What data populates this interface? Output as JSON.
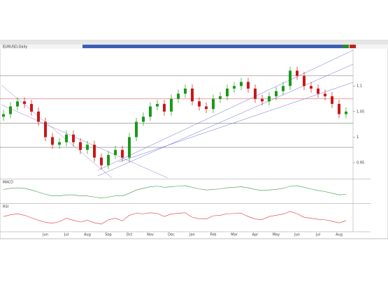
{
  "chart_data": {
    "type": "candlestick",
    "title": "EURUSD,Daily",
    "categories": [
      null,
      null,
      null,
      null,
      null,
      null,
      "Jun",
      null,
      null,
      "Jul",
      null,
      null,
      "Aug",
      null,
      null,
      "Sep",
      null,
      null,
      "Oct",
      null,
      null,
      "Nov",
      null,
      null,
      "Dec",
      null,
      null,
      "Jan",
      null,
      null,
      "Feb",
      null,
      null,
      "Mar",
      null,
      null,
      "Apr",
      null,
      null,
      "May",
      null,
      null,
      "Jun",
      null,
      null,
      "Jul",
      null,
      null,
      "Aug",
      null
    ],
    "open": [
      1.04,
      1.045,
      1.06,
      1.07,
      1.065,
      1.05,
      1.03,
      1.0,
      0.985,
      0.99,
      1.005,
      0.99,
      0.975,
      0.985,
      0.96,
      0.945,
      0.965,
      0.975,
      0.96,
      1.0,
      1.03,
      1.04,
      1.06,
      1.065,
      1.05,
      1.075,
      1.085,
      1.095,
      1.07,
      1.06,
      1.055,
      1.075,
      1.08,
      1.095,
      1.1,
      1.108,
      1.095,
      1.075,
      1.07,
      1.08,
      1.09,
      1.1,
      1.13,
      1.12,
      1.1,
      1.095,
      1.085,
      1.08,
      1.065,
      1.045
    ],
    "high": [
      1.053,
      1.068,
      1.078,
      1.078,
      1.073,
      1.058,
      1.038,
      1.008,
      0.998,
      1.013,
      1.013,
      0.998,
      0.993,
      0.993,
      0.968,
      0.973,
      0.983,
      0.983,
      1.008,
      1.038,
      1.048,
      1.068,
      1.073,
      1.073,
      1.083,
      1.093,
      1.103,
      1.103,
      1.078,
      1.068,
      1.083,
      1.088,
      1.103,
      1.108,
      1.116,
      1.116,
      1.103,
      1.083,
      1.088,
      1.098,
      1.108,
      1.138,
      1.138,
      1.128,
      1.108,
      1.103,
      1.093,
      1.088,
      1.073,
      1.058
    ],
    "low": [
      1.032,
      1.037,
      1.052,
      1.057,
      1.042,
      1.022,
      0.992,
      0.977,
      0.977,
      0.982,
      0.982,
      0.967,
      0.967,
      0.952,
      0.937,
      0.937,
      0.957,
      0.952,
      0.952,
      0.992,
      1.022,
      1.032,
      1.052,
      1.042,
      1.042,
      1.067,
      1.077,
      1.062,
      1.052,
      1.047,
      1.047,
      1.067,
      1.072,
      1.087,
      1.092,
      1.087,
      1.067,
      1.062,
      1.062,
      1.072,
      1.082,
      1.092,
      1.112,
      1.092,
      1.087,
      1.077,
      1.072,
      1.057,
      1.037,
      1.037
    ],
    "close": [
      1.045,
      1.06,
      1.07,
      1.065,
      1.05,
      1.03,
      1.0,
      0.985,
      0.99,
      1.005,
      0.99,
      0.975,
      0.985,
      0.96,
      0.945,
      0.965,
      0.975,
      0.96,
      1.0,
      1.03,
      1.04,
      1.06,
      1.065,
      1.05,
      1.075,
      1.085,
      1.095,
      1.07,
      1.06,
      1.055,
      1.075,
      1.08,
      1.095,
      1.1,
      1.108,
      1.095,
      1.075,
      1.07,
      1.08,
      1.09,
      1.1,
      1.13,
      1.12,
      1.1,
      1.095,
      1.085,
      1.08,
      1.065,
      1.045,
      1.05
    ],
    "up_color": "#1a9a1a",
    "down_color": "#c81818",
    "ylim": [
      0.92,
      1.17
    ],
    "yticks": [
      0.95,
      1,
      1.05,
      1.1
    ],
    "levels": [
      {
        "value": 1.12,
        "color": "#8c8c8c"
      },
      {
        "value": 1.075,
        "color": "#e06a6a"
      },
      {
        "value": 1.027,
        "color": "#7a7a7a"
      },
      {
        "value": 0.98,
        "color": "#7a7a7a"
      }
    ],
    "indicators": [
      {
        "name": "MACD",
        "color": "#3a9a3a",
        "ylim": [
          -0.02,
          0.02
        ],
        "values": [
          0.004,
          0.006,
          0.007,
          0.006,
          0.003,
          -0.001,
          -0.005,
          -0.008,
          -0.008,
          -0.006,
          -0.006,
          -0.008,
          -0.008,
          -0.01,
          -0.012,
          -0.01,
          -0.008,
          -0.008,
          -0.003,
          0.003,
          0.006,
          0.009,
          0.01,
          0.008,
          0.009,
          0.01,
          0.011,
          0.008,
          0.005,
          0.003,
          0.004,
          0.005,
          0.007,
          0.008,
          0.009,
          0.007,
          0.004,
          0.002,
          0.003,
          0.004,
          0.006,
          0.01,
          0.011,
          0.008,
          0.005,
          0.002,
          0,
          -0.003,
          -0.006,
          -0.005
        ]
      },
      {
        "name": "RSI",
        "color": "#e03030",
        "ylim": [
          0,
          100
        ],
        "values": [
          55,
          62,
          66,
          60,
          50,
          40,
          32,
          28,
          35,
          48,
          40,
          33,
          40,
          30,
          25,
          42,
          48,
          38,
          60,
          68,
          66,
          70,
          67,
          55,
          65,
          68,
          70,
          52,
          46,
          45,
          58,
          60,
          66,
          67,
          68,
          55,
          45,
          43,
          55,
          60,
          65,
          75,
          66,
          52,
          48,
          44,
          42,
          36,
          30,
          38
        ]
      }
    ]
  }
}
